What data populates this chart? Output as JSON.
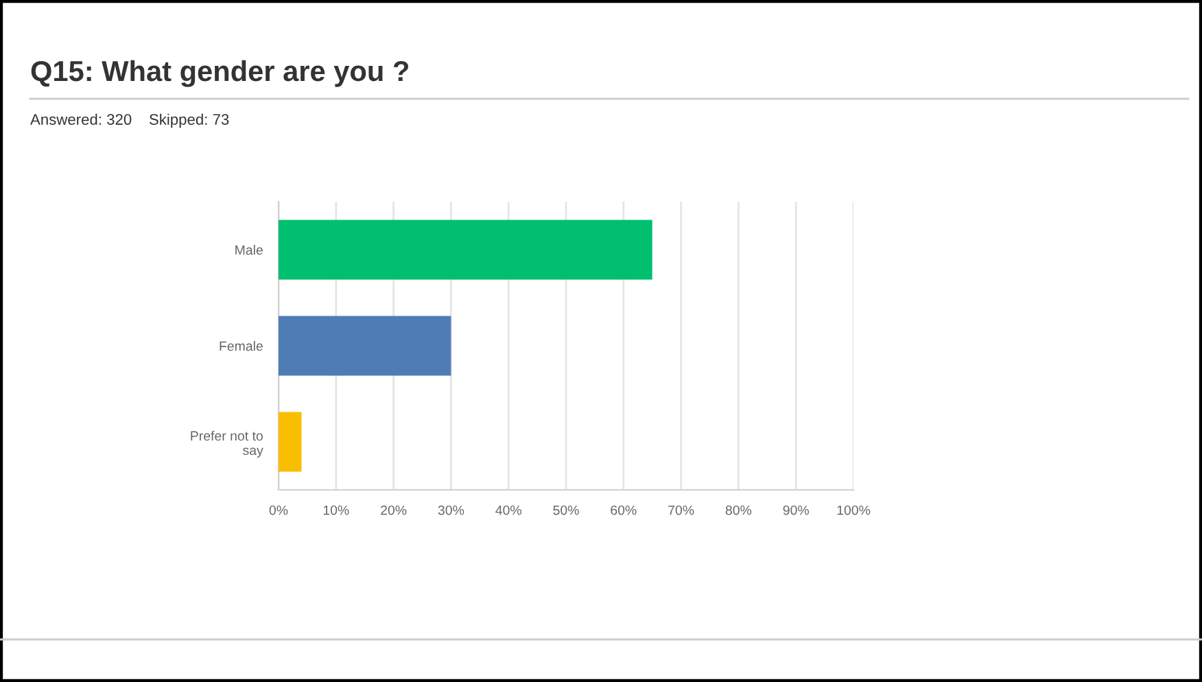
{
  "chart_data": {
    "type": "bar",
    "orientation": "horizontal",
    "title": "Q15: What gender are you ?",
    "subtitle": "Answered: 320    Skipped: 73",
    "categories": [
      "Male",
      "Female",
      "Prefer not to\nsay"
    ],
    "values": [
      65,
      30,
      4
    ],
    "colors": [
      "#00bf6f",
      "#507cb6",
      "#f9be00"
    ],
    "xlim": [
      0,
      100
    ],
    "xticks": [
      {
        "value": 0,
        "label": "0%"
      },
      {
        "value": 10,
        "label": "10%"
      },
      {
        "value": 20,
        "label": "20%"
      },
      {
        "value": 30,
        "label": "30%"
      },
      {
        "value": 40,
        "label": "40%"
      },
      {
        "value": 50,
        "label": "50%"
      },
      {
        "value": 60,
        "label": "60%"
      },
      {
        "value": 70,
        "label": "70%"
      },
      {
        "value": 80,
        "label": "80%"
      },
      {
        "value": 90,
        "label": "90%"
      },
      {
        "value": 100,
        "label": "100%"
      }
    ],
    "grid": "x"
  }
}
